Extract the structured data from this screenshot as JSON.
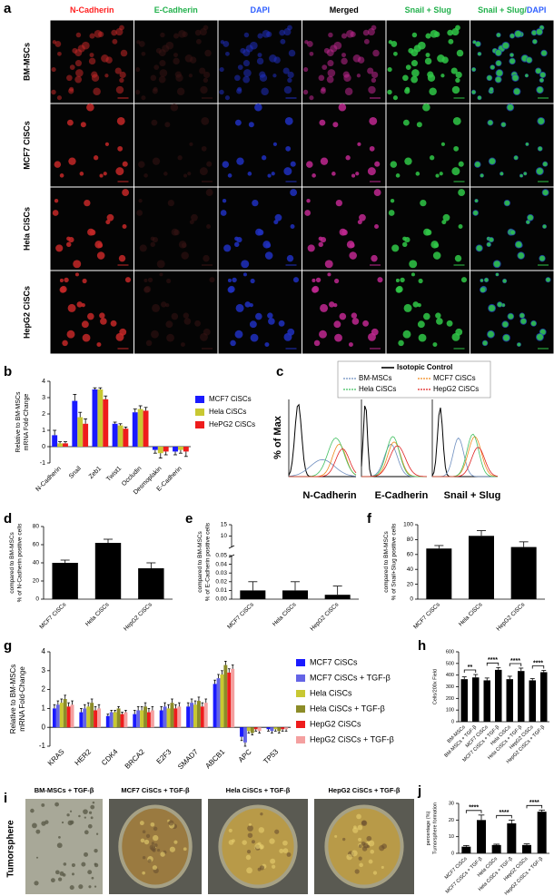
{
  "panel_labels": [
    "a",
    "b",
    "c",
    "d",
    "e",
    "f",
    "g",
    "h",
    "i",
    "j"
  ],
  "microscopy": {
    "columns": [
      [
        {
          "text": "N-Cadherin",
          "color": "#ff2020"
        }
      ],
      [
        {
          "text": "E-Cadherin",
          "color": "#22b14c"
        }
      ],
      [
        {
          "text": "DAPI",
          "color": "#3060ff"
        }
      ],
      [
        {
          "text": "Merged",
          "color": "#000000"
        }
      ],
      [
        {
          "text": "Snail + Slug",
          "color": "#22b14c"
        }
      ],
      [
        {
          "text": "Snail + Slug/",
          "color": "#22b14c"
        },
        {
          "text": "DAPI",
          "color": "#3060ff"
        }
      ]
    ],
    "rows": [
      "BM-MSCs",
      "MCF7 CiSCs",
      "Hela CiSCs",
      "HepG2 CiSCs"
    ]
  },
  "tumorsphere": {
    "label": "Tumorsphere",
    "titles": [
      "BM-MSCs + TGF-β",
      "MCF7 CiSCs + TGF-β",
      "Hela CiSCs + TGF-β",
      "HepG2 CiSCs + TGF-β"
    ]
  },
  "chart_data": [
    {
      "type": "bar",
      "ylabel": [
        "mRNA Fold-Change",
        "Relative to BM-MSCs"
      ],
      "categories": [
        "N-Cadherin",
        "Snail",
        "Zeb1",
        "Twist1",
        "Occludin",
        "Desmoplakin",
        "E-Cadherin"
      ],
      "series": [
        {
          "name": "MCF7 CiSCs",
          "color": "#1a1aff",
          "values": [
            0.7,
            2.8,
            3.5,
            1.4,
            2.1,
            -0.2,
            -0.3
          ],
          "errors": [
            0.3,
            0.4,
            0.1,
            0.1,
            0.2,
            0.2,
            0.2
          ]
        },
        {
          "name": "Hela CiSCs",
          "color": "#c8c832",
          "values": [
            0.2,
            1.8,
            3.5,
            1.3,
            2.3,
            -0.4,
            -0.2
          ],
          "errors": [
            0.1,
            0.3,
            0.1,
            0.1,
            0.2,
            0.3,
            0.2
          ]
        },
        {
          "name": "HePG2 CiSCs",
          "color": "#ee1c1c",
          "values": [
            0.2,
            1.4,
            2.9,
            1.1,
            2.2,
            -0.3,
            -0.3
          ],
          "errors": [
            0.1,
            0.3,
            0.2,
            0.1,
            0.2,
            0.2,
            0.3
          ]
        }
      ],
      "ylim": [
        -1,
        4
      ],
      "yticks": [
        -1,
        0,
        1,
        2,
        3,
        4
      ]
    },
    {
      "type": "flow",
      "ylabel": "% of Max",
      "xlabels": [
        "N-Cadherin",
        "E-Cadherin",
        "Snail + Slug"
      ],
      "legend": [
        {
          "name": "Isotopic Control",
          "color": "#000000"
        },
        {
          "name": "BM-MSCs",
          "color": "#6f8fc0"
        },
        {
          "name": "MCF7 CiSCs",
          "color": "#f08a1c"
        },
        {
          "name": "Hela CiSCs",
          "color": "#40c060"
        },
        {
          "name": "HepG2 CiSCs",
          "color": "#e02020"
        }
      ]
    },
    {
      "type": "bar",
      "ylabel": [
        "% of N-Cadherin positive cells",
        "compared to BM-MSCs"
      ],
      "categories": [
        "MCF7 CiSCs",
        "Hela CiSCs",
        "HepG2 CiSCs"
      ],
      "values": [
        40,
        62,
        34
      ],
      "errors": [
        3,
        4,
        6
      ],
      "color": "#000000",
      "ylim": [
        0,
        80
      ],
      "yticks": [
        0,
        20,
        40,
        60,
        80
      ]
    },
    {
      "type": "bar",
      "ylabel": [
        "% of E-Cadherin positive cells",
        "compared to BM-MSCs"
      ],
      "categories": [
        "MCF7 CiSCs",
        "Hela CiSCs",
        "HepG2 CiSCs"
      ],
      "values": [
        0.01,
        0.01,
        0.005
      ],
      "errors": [
        0.01,
        0.01,
        0.01
      ],
      "color": "#000000",
      "ylim": [
        0,
        0.05
      ],
      "yticks": [
        {
          "value": 0,
          "label": "0.00"
        },
        {
          "value": 0.01,
          "label": "0.01"
        },
        {
          "value": 0.02,
          "label": "0.02"
        },
        {
          "value": 0.03,
          "label": "0.03"
        },
        {
          "value": 0.04,
          "label": "0.04"
        },
        {
          "value": 0.05,
          "label": "0.05"
        }
      ],
      "ylim_upper": [
        5,
        15
      ],
      "yticks_upper": [
        10,
        15
      ]
    },
    {
      "type": "bar",
      "ylabel": [
        "% of Snail+Slug positive cells",
        "compared to BM-MSCs"
      ],
      "categories": [
        "MCF7 CiSCs",
        "Hela CiSCs",
        "HepG2 CiSCs"
      ],
      "values": [
        68,
        85,
        70
      ],
      "errors": [
        4,
        7,
        7
      ],
      "color": "#000000",
      "ylim": [
        0,
        100
      ],
      "yticks": [
        0,
        20,
        40,
        60,
        80,
        100
      ]
    },
    {
      "type": "bar",
      "ylabel": [
        "mRNA Fold-Change",
        "Relative to BM-MSCs"
      ],
      "categories": [
        "KRAS",
        "HER2",
        "CDK4",
        "BRCA2",
        "E2F3",
        "SMAD7",
        "ABCB1",
        "APC",
        "TP53"
      ],
      "series": [
        {
          "name": "MCF7 CiSCs",
          "color": "#1a1aff",
          "values": [
            1.0,
            0.8,
            0.6,
            0.7,
            0.9,
            1.1,
            2.3,
            -0.5,
            -0.1
          ],
          "errors": [
            0.2,
            0.2,
            0.1,
            0.2,
            0.2,
            0.2,
            0.2,
            0.2,
            0.1
          ]
        },
        {
          "name": "MCF7 CiSCs + TGF-β",
          "color": "#6464e6",
          "values": [
            1.2,
            1.0,
            0.8,
            0.9,
            1.1,
            1.3,
            2.6,
            -0.8,
            -0.2
          ],
          "errors": [
            0.2,
            0.2,
            0.1,
            0.2,
            0.2,
            0.2,
            0.2,
            0.2,
            0.1
          ]
        },
        {
          "name": "Hela CiSCs",
          "color": "#c8c832",
          "values": [
            1.3,
            1.1,
            0.8,
            0.9,
            1.0,
            1.2,
            2.8,
            -0.2,
            -0.1
          ],
          "errors": [
            0.2,
            0.2,
            0.1,
            0.2,
            0.2,
            0.2,
            0.2,
            0.1,
            0.1
          ]
        },
        {
          "name": "Hela CiSCs + TGF-β",
          "color": "#8c8c28",
          "values": [
            1.5,
            1.3,
            1.0,
            1.1,
            1.3,
            1.4,
            3.3,
            -0.3,
            -0.2
          ],
          "errors": [
            0.2,
            0.2,
            0.1,
            0.2,
            0.2,
            0.2,
            0.2,
            0.1,
            0.1
          ]
        },
        {
          "name": "HepG2 CiSCs",
          "color": "#ee1c1c",
          "values": [
            1.1,
            0.9,
            0.7,
            0.8,
            1.0,
            1.1,
            2.9,
            -0.1,
            -0.1
          ],
          "errors": [
            0.2,
            0.2,
            0.1,
            0.2,
            0.2,
            0.2,
            0.2,
            0.1,
            0.1
          ]
        },
        {
          "name": "HepG2 CiSCs + TGF-β",
          "color": "#f4a0a0",
          "values": [
            1.2,
            1.0,
            0.8,
            0.9,
            1.1,
            1.3,
            3.1,
            -0.2,
            -0.1
          ],
          "errors": [
            0.2,
            0.2,
            0.1,
            0.2,
            0.2,
            0.2,
            0.2,
            0.1,
            0.1
          ]
        }
      ],
      "ylim": [
        -1,
        4
      ],
      "yticks": [
        -1,
        0,
        1,
        2,
        3,
        4
      ]
    },
    {
      "type": "bar",
      "ylabel": [
        "Cells/200x Field"
      ],
      "categories": [
        "BM-MSCs",
        "BM-MSCs + TGF-β",
        "MCF7 CiSCs",
        "MCF7 CiSCs + TGF-β",
        "Hela CiSCs",
        "Hela CiSCs + TGF-β",
        "HepG2 CiSCs",
        "HepG2 CiSCs + TGF-β"
      ],
      "values": [
        365,
        380,
        355,
        445,
        365,
        435,
        355,
        425
      ],
      "errors": [
        20,
        25,
        20,
        20,
        25,
        25,
        15,
        15
      ],
      "color": "#000000",
      "ylim": [
        0,
        600
      ],
      "yticks": [
        0,
        100,
        200,
        300,
        400,
        500,
        600
      ],
      "significance": [
        "**",
        "****",
        "****",
        "****"
      ]
    },
    {
      "type": "bar",
      "ylabel": [
        "Tumorsphere formation",
        "percentage (%)"
      ],
      "categories": [
        "MCF7 CiSCs",
        "MCF7 CiSCs + TGF-β",
        "Hela CiSCs",
        "Hela CiSCs + TGF-β",
        "HepG2 CiSCs",
        "HepG2 CiSCs + TGF-β"
      ],
      "values": [
        4,
        20,
        5,
        18,
        5,
        25
      ],
      "errors": [
        0.7,
        3,
        0.5,
        2,
        0.7,
        1
      ],
      "color": "#000000",
      "ylim": [
        0,
        30
      ],
      "yticks": [
        0,
        10,
        20,
        30
      ],
      "significance": [
        "****",
        "****",
        "****"
      ]
    }
  ]
}
